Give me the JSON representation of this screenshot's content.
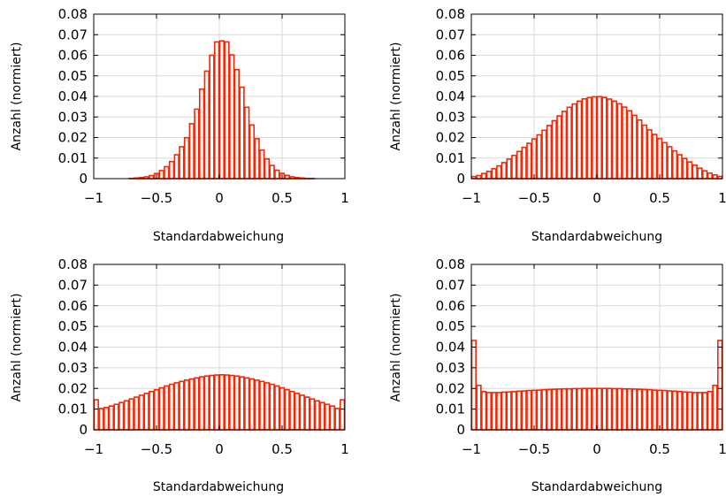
{
  "chart_data": [
    {
      "type": "bar",
      "panel": "top-left",
      "xlabel": "Standardabweichung",
      "ylabel": "Anzahl (normiert)",
      "xlim": [
        -1,
        1
      ],
      "ylim": [
        0,
        0.08
      ],
      "xticks": [
        "−1",
        "−0.5",
        "0",
        "0.5",
        "1"
      ],
      "yticks": [
        "0",
        "0.01",
        "0.02",
        "0.03",
        "0.04",
        "0.05",
        "0.06",
        "0.07",
        "0.08"
      ],
      "grid": true,
      "bar_color": "#ff2200",
      "bin_width": 0.04,
      "x": [
        -0.98,
        -0.94,
        -0.9,
        -0.86,
        -0.82,
        -0.78,
        -0.74,
        -0.7,
        -0.66,
        -0.62,
        -0.58,
        -0.54,
        -0.5,
        -0.46,
        -0.42,
        -0.38,
        -0.34,
        -0.3,
        -0.26,
        -0.22,
        -0.18,
        -0.14,
        -0.1,
        -0.06,
        -0.02,
        0.02,
        0.06,
        0.1,
        0.14,
        0.18,
        0.22,
        0.26,
        0.3,
        0.34,
        0.38,
        0.42,
        0.46,
        0.5,
        0.54,
        0.58,
        0.62,
        0.66,
        0.7,
        0.74,
        0.78,
        0.82,
        0.86,
        0.9,
        0.94,
        0.98
      ],
      "values": [
        0,
        0,
        0,
        0,
        0,
        0,
        0,
        0.0001,
        0.0003,
        0.0005,
        0.0009,
        0.0015,
        0.0025,
        0.0039,
        0.0058,
        0.0083,
        0.0116,
        0.0155,
        0.0199,
        0.0267,
        0.0338,
        0.0435,
        0.0523,
        0.06,
        0.0665,
        0.067,
        0.0665,
        0.0602,
        0.053,
        0.0445,
        0.0347,
        0.0261,
        0.0194,
        0.0139,
        0.0096,
        0.0064,
        0.0041,
        0.0026,
        0.0016,
        0.0009,
        0.0005,
        0.0003,
        0.0001,
        0.0001,
        0,
        0,
        0,
        0,
        0,
        0
      ]
    },
    {
      "type": "bar",
      "panel": "top-right",
      "xlabel": "Standardabweichung",
      "ylabel": "Anzahl (normiert)",
      "xlim": [
        -1,
        1
      ],
      "ylim": [
        0,
        0.08
      ],
      "xticks": [
        "−1",
        "−0.5",
        "0",
        "0.5",
        "1"
      ],
      "yticks": [
        "0",
        "0.01",
        "0.02",
        "0.03",
        "0.04",
        "0.05",
        "0.06",
        "0.07",
        "0.08"
      ],
      "grid": true,
      "bar_color": "#ff2200",
      "bin_width": 0.04,
      "x": [
        -0.98,
        -0.94,
        -0.9,
        -0.86,
        -0.82,
        -0.78,
        -0.74,
        -0.7,
        -0.66,
        -0.62,
        -0.58,
        -0.54,
        -0.5,
        -0.46,
        -0.42,
        -0.38,
        -0.34,
        -0.3,
        -0.26,
        -0.22,
        -0.18,
        -0.14,
        -0.1,
        -0.06,
        -0.02,
        0.02,
        0.06,
        0.1,
        0.14,
        0.18,
        0.22,
        0.26,
        0.3,
        0.34,
        0.38,
        0.42,
        0.46,
        0.5,
        0.54,
        0.58,
        0.62,
        0.66,
        0.7,
        0.74,
        0.78,
        0.82,
        0.86,
        0.9,
        0.94,
        0.98
      ],
      "values": [
        0.001,
        0.0015,
        0.0025,
        0.0035,
        0.0048,
        0.0062,
        0.0078,
        0.0095,
        0.0113,
        0.0132,
        0.0152,
        0.0172,
        0.0193,
        0.0213,
        0.0235,
        0.0258,
        0.0282,
        0.0305,
        0.0327,
        0.0347,
        0.0363,
        0.0377,
        0.0388,
        0.0394,
        0.0398,
        0.0399,
        0.0395,
        0.0387,
        0.0377,
        0.0364,
        0.0348,
        0.033,
        0.0308,
        0.0285,
        0.026,
        0.0237,
        0.0215,
        0.0195,
        0.0175,
        0.0155,
        0.0135,
        0.0116,
        0.0098,
        0.0081,
        0.0066,
        0.0051,
        0.0038,
        0.0027,
        0.0018,
        0.0011
      ]
    },
    {
      "type": "bar",
      "panel": "bottom-left",
      "xlabel": "Standardabweichung",
      "ylabel": "Anzahl (normiert)",
      "xlim": [
        -1,
        1
      ],
      "ylim": [
        0,
        0.08
      ],
      "xticks": [
        "−1",
        "−0.5",
        "0",
        "0.5",
        "1"
      ],
      "yticks": [
        "0",
        "0.01",
        "0.02",
        "0.03",
        "0.04",
        "0.05",
        "0.06",
        "0.07",
        "0.08"
      ],
      "grid": true,
      "bar_color": "#ff2200",
      "bin_width": 0.04,
      "x": [
        -0.98,
        -0.94,
        -0.9,
        -0.86,
        -0.82,
        -0.78,
        -0.74,
        -0.7,
        -0.66,
        -0.62,
        -0.58,
        -0.54,
        -0.5,
        -0.46,
        -0.42,
        -0.38,
        -0.34,
        -0.3,
        -0.26,
        -0.22,
        -0.18,
        -0.14,
        -0.1,
        -0.06,
        -0.02,
        0.02,
        0.06,
        0.1,
        0.14,
        0.18,
        0.22,
        0.26,
        0.3,
        0.34,
        0.38,
        0.42,
        0.46,
        0.5,
        0.54,
        0.58,
        0.62,
        0.66,
        0.7,
        0.74,
        0.78,
        0.82,
        0.86,
        0.9,
        0.94,
        0.98
      ],
      "values": [
        0.0145,
        0.0103,
        0.0108,
        0.0115,
        0.0123,
        0.0132,
        0.014,
        0.0149,
        0.0158,
        0.0167,
        0.0176,
        0.0185,
        0.0194,
        0.0203,
        0.0212,
        0.022,
        0.0227,
        0.0234,
        0.024,
        0.0246,
        0.0251,
        0.0256,
        0.026,
        0.0263,
        0.0265,
        0.0266,
        0.0265,
        0.0263,
        0.026,
        0.0256,
        0.0251,
        0.0246,
        0.024,
        0.0234,
        0.0227,
        0.022,
        0.0212,
        0.0203,
        0.0194,
        0.0185,
        0.0176,
        0.0167,
        0.0158,
        0.0149,
        0.014,
        0.0132,
        0.0123,
        0.0115,
        0.0103,
        0.0145
      ]
    },
    {
      "type": "bar",
      "panel": "bottom-right",
      "xlabel": "Standardabweichung",
      "ylabel": "Anzahl (normiert)",
      "xlim": [
        -1,
        1
      ],
      "ylim": [
        0,
        0.08
      ],
      "xticks": [
        "−1",
        "−0.5",
        "0",
        "0.5",
        "1"
      ],
      "yticks": [
        "0",
        "0.01",
        "0.02",
        "0.03",
        "0.04",
        "0.05",
        "0.06",
        "0.07",
        "0.08"
      ],
      "grid": true,
      "bar_color": "#ff2200",
      "bin_width": 0.04,
      "x": [
        -0.98,
        -0.94,
        -0.9,
        -0.86,
        -0.82,
        -0.78,
        -0.74,
        -0.7,
        -0.66,
        -0.62,
        -0.58,
        -0.54,
        -0.5,
        -0.46,
        -0.42,
        -0.38,
        -0.34,
        -0.3,
        -0.26,
        -0.22,
        -0.18,
        -0.14,
        -0.1,
        -0.06,
        -0.02,
        0.02,
        0.06,
        0.1,
        0.14,
        0.18,
        0.22,
        0.26,
        0.3,
        0.34,
        0.38,
        0.42,
        0.46,
        0.5,
        0.54,
        0.58,
        0.62,
        0.66,
        0.7,
        0.74,
        0.78,
        0.82,
        0.86,
        0.9,
        0.94,
        0.98
      ],
      "values": [
        0.0432,
        0.0215,
        0.0185,
        0.018,
        0.018,
        0.018,
        0.0182,
        0.0183,
        0.0185,
        0.0187,
        0.0188,
        0.019,
        0.0191,
        0.0192,
        0.0194,
        0.0195,
        0.0196,
        0.0197,
        0.0198,
        0.0198,
        0.0199,
        0.0199,
        0.02,
        0.02,
        0.02,
        0.02,
        0.02,
        0.02,
        0.0199,
        0.0199,
        0.0198,
        0.0198,
        0.0197,
        0.0196,
        0.0195,
        0.0194,
        0.0192,
        0.0191,
        0.019,
        0.0188,
        0.0187,
        0.0185,
        0.0183,
        0.0182,
        0.018,
        0.018,
        0.018,
        0.0185,
        0.0215,
        0.0432
      ]
    }
  ]
}
